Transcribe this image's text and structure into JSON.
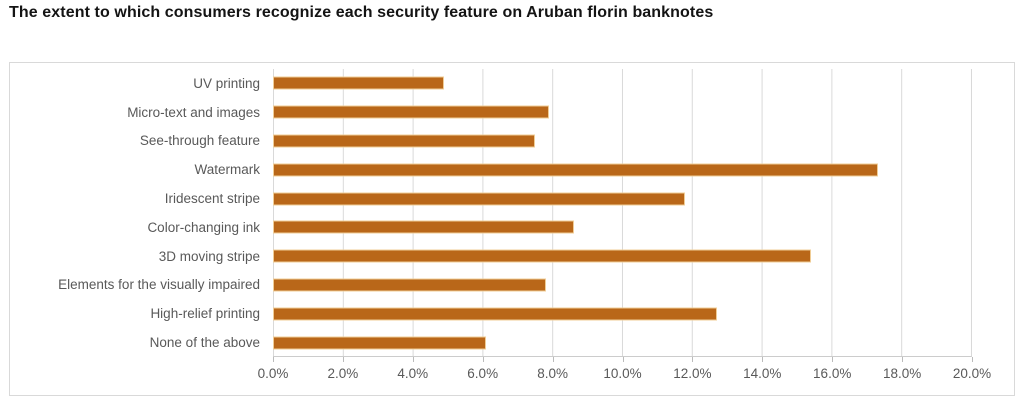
{
  "page": {
    "title": "The extent to which consumers recognize each security feature on Aruban florin banknotes"
  },
  "chart_data": {
    "type": "bar",
    "orientation": "horizontal",
    "title": "The extent to which consumers recognize each security feature on Aruban florin banknotes",
    "categories": [
      "UV printing",
      "Micro-text and images",
      "See-through feature",
      "Watermark",
      "Iridescent stripe",
      "Color-changing ink",
      "3D moving stripe",
      "Elements for the visually impaired",
      "High-relief printing",
      "None of the above"
    ],
    "values": [
      4.9,
      7.9,
      7.5,
      17.3,
      11.8,
      8.6,
      15.4,
      7.8,
      12.7,
      6.1
    ],
    "unit": "%",
    "xlabel": "",
    "ylabel": "",
    "xlim": [
      0,
      20
    ],
    "x_tick_labels": [
      "0.0%",
      "2.0%",
      "4.0%",
      "6.0%",
      "8.0%",
      "10.0%",
      "12.0%",
      "14.0%",
      "16.0%",
      "18.0%",
      "20.0%"
    ],
    "grid": true,
    "legend": false,
    "colors": {
      "bar_fill": "#b96719",
      "bar_outline": "#f0cd96",
      "gridline": "#d9d9d9",
      "axis_line": "#cccccc",
      "tick_mark": "#bbbbbb",
      "label_text": "#595959",
      "title_text": "#141414",
      "chart_border": "#d9d9d9",
      "background": "#ffffff"
    }
  }
}
